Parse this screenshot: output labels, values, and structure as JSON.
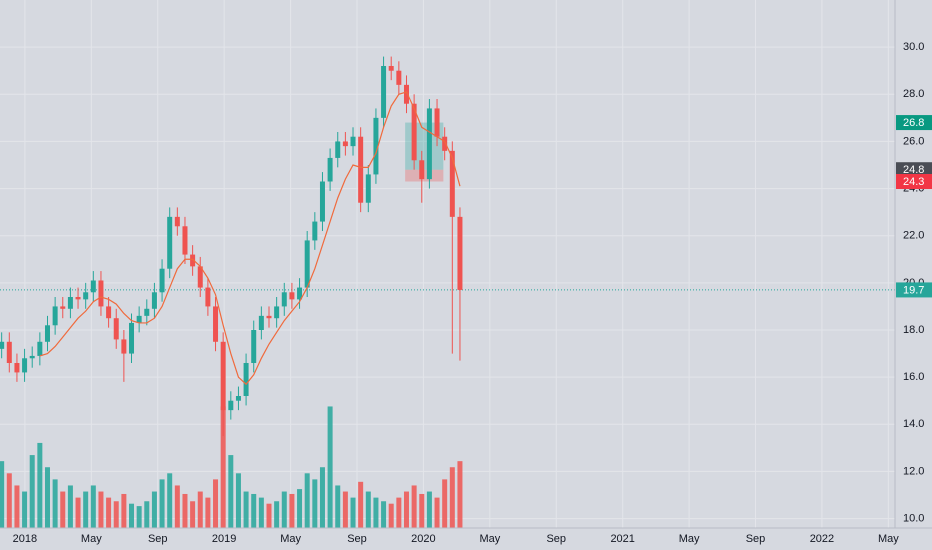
{
  "chart_data": {
    "type": "candlestick",
    "x": [
      -1.4,
      -0.94,
      -0.48,
      -0.02,
      0.44,
      0.9,
      1.36,
      1.82,
      2.28,
      2.74,
      3.2,
      3.66,
      4.12,
      4.58,
      5.04,
      5.5,
      5.96,
      6.42,
      6.88,
      7.34,
      7.8,
      8.26,
      8.72,
      9.18,
      9.64,
      10.1,
      10.56,
      11.02,
      11.48,
      11.94,
      12.4,
      12.86,
      13.32,
      13.78,
      14.24,
      14.7,
      15.16,
      15.62,
      16.08,
      16.54,
      17.0,
      17.46,
      17.92,
      18.38,
      18.84,
      19.3,
      19.76,
      20.22,
      20.68,
      21.14,
      21.6,
      22.06,
      22.52,
      22.98,
      23.44,
      23.9,
      24.36,
      24.82,
      25.28,
      25.74,
      26.2
    ],
    "open": [
      17.2,
      17.5,
      16.6,
      16.2,
      16.8,
      16.9,
      17.5,
      18.2,
      19.0,
      18.9,
      19.4,
      19.3,
      19.6,
      20.1,
      19.0,
      18.5,
      17.6,
      17.0,
      18.3,
      18.6,
      18.9,
      19.6,
      20.6,
      22.8,
      22.4,
      21.2,
      20.7,
      19.8,
      19.0,
      17.5,
      14.6,
      15.0,
      15.2,
      16.6,
      18.0,
      18.6,
      18.5,
      19.0,
      19.6,
      19.3,
      19.8,
      21.8,
      22.6,
      24.3,
      25.3,
      26.0,
      25.8,
      26.2,
      23.4,
      24.6,
      27.0,
      29.2,
      29.0,
      28.4,
      27.6,
      25.2,
      24.4,
      27.4,
      26.2,
      25.6,
      22.8
    ],
    "high": [
      17.9,
      17.9,
      17.0,
      17.2,
      17.3,
      17.9,
      18.6,
      19.4,
      19.4,
      19.8,
      19.8,
      20.0,
      20.5,
      20.5,
      19.4,
      18.9,
      18.0,
      18.7,
      19.0,
      19.3,
      20.0,
      21.0,
      23.2,
      23.2,
      22.8,
      21.6,
      21.1,
      20.2,
      19.4,
      17.9,
      15.4,
      15.6,
      17.0,
      18.4,
      19.0,
      19.0,
      19.4,
      20.0,
      20.0,
      20.2,
      22.2,
      23.0,
      24.7,
      25.7,
      26.4,
      26.4,
      26.6,
      26.6,
      25.0,
      27.4,
      29.6,
      29.6,
      29.4,
      28.8,
      28.0,
      25.6,
      27.8,
      27.8,
      26.6,
      26.0,
      23.2
    ],
    "low": [
      16.8,
      16.2,
      15.8,
      15.8,
      16.4,
      16.5,
      17.1,
      17.8,
      18.5,
      18.5,
      18.9,
      18.9,
      19.2,
      18.6,
      18.1,
      17.2,
      15.8,
      16.6,
      17.9,
      18.2,
      18.5,
      19.2,
      20.2,
      22.0,
      20.8,
      20.3,
      19.4,
      18.6,
      17.1,
      13.5,
      14.2,
      14.6,
      14.8,
      16.2,
      17.6,
      18.1,
      18.1,
      18.6,
      18.9,
      18.9,
      19.4,
      21.4,
      22.2,
      23.9,
      24.9,
      25.4,
      25.4,
      23.0,
      23.0,
      24.2,
      26.6,
      28.6,
      28.0,
      27.2,
      24.8,
      23.4,
      24.0,
      25.8,
      25.2,
      17.0,
      16.7
    ],
    "close": [
      17.5,
      16.6,
      16.2,
      16.8,
      16.9,
      17.5,
      18.2,
      19.0,
      18.9,
      19.4,
      19.3,
      19.6,
      20.1,
      19.0,
      18.5,
      17.6,
      17.0,
      18.3,
      18.6,
      18.9,
      19.6,
      20.6,
      22.8,
      22.4,
      21.2,
      20.7,
      19.8,
      19.0,
      17.5,
      14.6,
      15.0,
      15.2,
      16.6,
      18.0,
      18.6,
      18.5,
      19.0,
      19.6,
      19.3,
      19.8,
      21.8,
      22.6,
      24.3,
      25.3,
      26.0,
      25.8,
      26.2,
      23.4,
      24.6,
      27.0,
      29.2,
      29.0,
      28.4,
      27.6,
      25.2,
      24.4,
      27.4,
      26.2,
      25.6,
      22.8,
      19.7
    ],
    "volume": [
      55,
      45,
      35,
      30,
      60,
      70,
      50,
      40,
      30,
      35,
      25,
      30,
      35,
      30,
      25,
      22,
      28,
      20,
      18,
      22,
      30,
      40,
      45,
      35,
      28,
      22,
      30,
      25,
      40,
      100,
      60,
      45,
      30,
      28,
      25,
      20,
      22,
      30,
      28,
      32,
      45,
      40,
      50,
      100,
      35,
      30,
      25,
      38,
      30,
      25,
      22,
      20,
      25,
      30,
      35,
      28,
      30,
      25,
      40,
      50,
      55
    ],
    "volume_lim": [
      0,
      130
    ],
    "ma": [
      null,
      null,
      null,
      null,
      null,
      16.9,
      17.0,
      17.3,
      17.7,
      18.1,
      18.5,
      18.8,
      19.2,
      19.4,
      19.3,
      19.1,
      18.7,
      18.4,
      18.3,
      18.3,
      18.5,
      19.0,
      19.8,
      20.6,
      21.0,
      21.0,
      20.7,
      20.2,
      19.5,
      18.2,
      17.0,
      16.0,
      15.7,
      16.1,
      16.8,
      17.4,
      17.9,
      18.4,
      18.8,
      19.2,
      19.8,
      20.6,
      21.6,
      22.6,
      23.6,
      24.4,
      25.0,
      24.9,
      24.9,
      25.5,
      26.6,
      27.5,
      28.0,
      28.1,
      27.4,
      26.6,
      26.4,
      26.2,
      26.0,
      25.3,
      24.1
    ],
    "ma_color": "#f06a3c",
    "up_color": "#26a69a",
    "down_color": "#ef5350",
    "position": {
      "start": 22.9,
      "end": 25.2,
      "entry": 24.8,
      "target": 26.8,
      "stop": 24.3
    },
    "price_labels": [
      {
        "value": 26.8,
        "color": "#089981"
      },
      {
        "value": 24.8,
        "color": "#4a4d55"
      },
      {
        "value": 24.3,
        "color": "#f23645"
      },
      {
        "value": 19.7,
        "color": "#26a69a",
        "line": true
      }
    ],
    "xlim": [
      -1.5,
      52.4
    ],
    "ylim": [
      9.6,
      32
    ],
    "xticks": [
      {
        "value": 0,
        "label": "2018"
      },
      {
        "value": 4,
        "label": "May"
      },
      {
        "value": 8,
        "label": "Sep"
      },
      {
        "value": 12,
        "label": "2019"
      },
      {
        "value": 16,
        "label": "May"
      },
      {
        "value": 20,
        "label": "Sep"
      },
      {
        "value": 24,
        "label": "2020"
      },
      {
        "value": 28,
        "label": "May"
      },
      {
        "value": 32,
        "label": "Sep"
      },
      {
        "value": 36,
        "label": "2021"
      },
      {
        "value": 40,
        "label": "May"
      },
      {
        "value": 44,
        "label": "Sep"
      },
      {
        "value": 48,
        "label": "2022"
      },
      {
        "value": 52,
        "label": "May"
      }
    ],
    "yticks": [
      {
        "value": 10,
        "label": "10.0"
      },
      {
        "value": 12,
        "label": "12.0"
      },
      {
        "value": 14,
        "label": "14.0"
      },
      {
        "value": 16,
        "label": "16.0"
      },
      {
        "value": 18,
        "label": "18.0"
      },
      {
        "value": 20,
        "label": "20.0"
      },
      {
        "value": 22,
        "label": "22.0"
      },
      {
        "value": 24,
        "label": "24.0"
      },
      {
        "value": 26,
        "label": "26.0"
      },
      {
        "value": 28,
        "label": "28.0"
      },
      {
        "value": 30,
        "label": "30.0"
      }
    ],
    "grid": true
  }
}
